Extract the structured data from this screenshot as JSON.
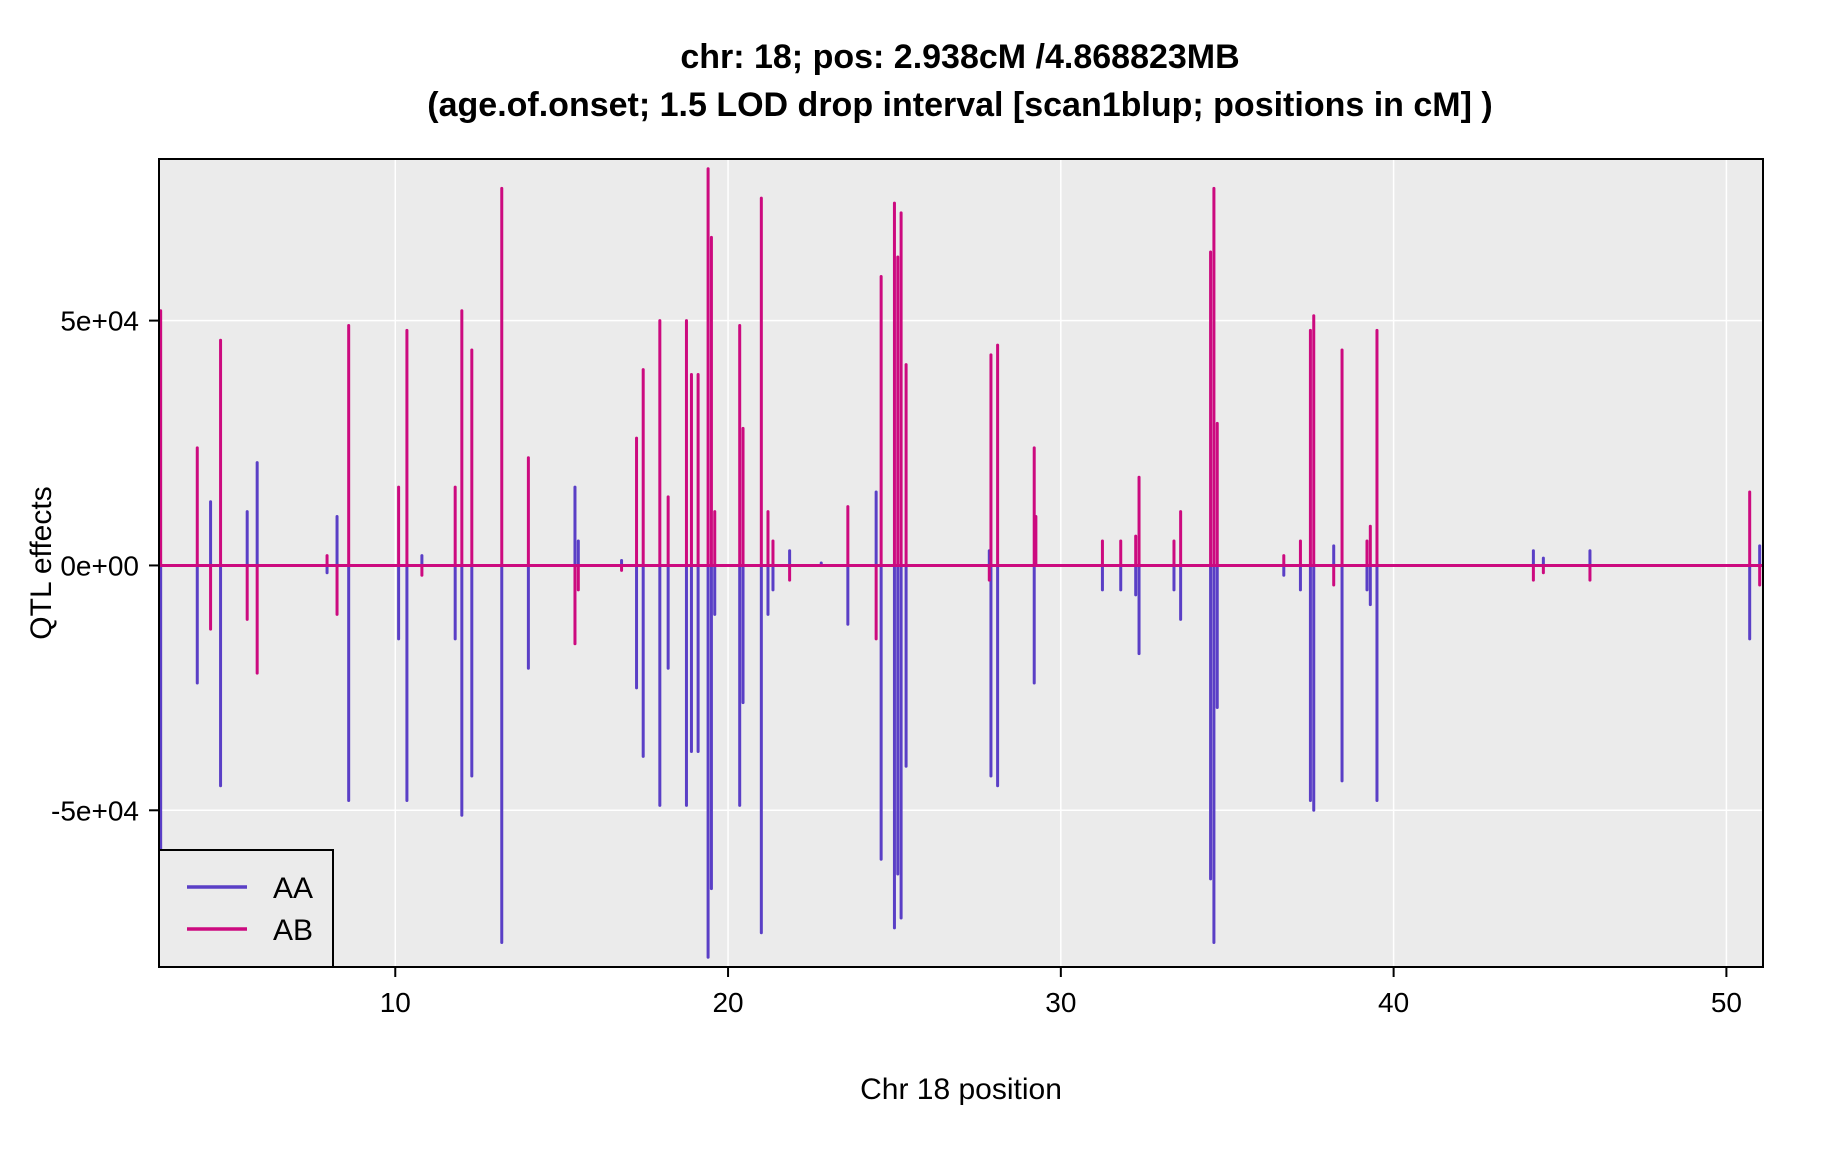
{
  "chart_data": {
    "type": "line",
    "title": "chr: 18; pos: 2.938cM /4.868823MB",
    "subtitle": "(age.of.onset; 1.5 LOD drop interval [scan1blup; positions in cM] )",
    "xlabel": "Chr 18 position",
    "ylabel": "QTL effects",
    "xlim": [
      2.9,
      51.1
    ],
    "ylim": [
      -82000,
      83000
    ],
    "x_ticks": [
      10,
      20,
      30,
      40,
      50
    ],
    "x_tick_labels": [
      "10",
      "20",
      "30",
      "40",
      "50"
    ],
    "y_ticks": [
      -50000,
      0,
      50000
    ],
    "y_tick_labels": [
      "-5e+04",
      "0e+00",
      "5e+04"
    ],
    "grid": true,
    "legend_position": "bottom-left",
    "colors": {
      "panel_bg": "#ebebeb",
      "grid": "#ffffff",
      "AA": "#5a3fc6",
      "AB": "#cc0a7f"
    },
    "series": [
      {
        "name": "AA",
        "color": "#5a3fc6",
        "spikes": [
          [
            2.95,
            -65000
          ],
          [
            4.05,
            -24000
          ],
          [
            4.45,
            13000
          ],
          [
            4.75,
            -45000
          ],
          [
            5.55,
            11000
          ],
          [
            5.85,
            21000
          ],
          [
            7.95,
            -1500
          ],
          [
            8.25,
            10000
          ],
          [
            8.6,
            -48000
          ],
          [
            10.1,
            -15000
          ],
          [
            10.35,
            -48000
          ],
          [
            10.8,
            2000
          ],
          [
            11.8,
            -15000
          ],
          [
            12.0,
            -51000
          ],
          [
            12.3,
            -43000
          ],
          [
            13.2,
            -77000
          ],
          [
            14.0,
            -21000
          ],
          [
            15.4,
            16000
          ],
          [
            15.5,
            5000
          ],
          [
            16.8,
            1000
          ],
          [
            17.25,
            -25000
          ],
          [
            17.45,
            -39000
          ],
          [
            17.95,
            -49000
          ],
          [
            18.2,
            -21000
          ],
          [
            18.75,
            -49000
          ],
          [
            18.9,
            -38000
          ],
          [
            19.1,
            -38000
          ],
          [
            19.4,
            -80000
          ],
          [
            19.5,
            -66000
          ],
          [
            19.6,
            -10000
          ],
          [
            20.35,
            -49000
          ],
          [
            20.45,
            -28000
          ],
          [
            21.0,
            -75000
          ],
          [
            21.2,
            -10000
          ],
          [
            21.35,
            -5000
          ],
          [
            21.85,
            3000
          ],
          [
            22.8,
            500
          ],
          [
            23.6,
            -12000
          ],
          [
            24.45,
            15000
          ],
          [
            24.6,
            -60000
          ],
          [
            25.0,
            -74000
          ],
          [
            25.1,
            -63000
          ],
          [
            25.2,
            -72000
          ],
          [
            25.35,
            -41000
          ],
          [
            27.85,
            3000
          ],
          [
            27.9,
            -43000
          ],
          [
            28.1,
            -45000
          ],
          [
            29.2,
            -24000
          ],
          [
            31.25,
            -5000
          ],
          [
            31.8,
            -5000
          ],
          [
            32.25,
            -6000
          ],
          [
            32.35,
            -18000
          ],
          [
            33.4,
            -5000
          ],
          [
            33.6,
            -11000
          ],
          [
            34.5,
            -64000
          ],
          [
            34.6,
            -77000
          ],
          [
            34.7,
            -29000
          ],
          [
            36.7,
            -2000
          ],
          [
            37.2,
            -5000
          ],
          [
            37.5,
            -48000
          ],
          [
            37.6,
            -50000
          ],
          [
            38.2,
            4000
          ],
          [
            38.45,
            -44000
          ],
          [
            39.2,
            -5000
          ],
          [
            39.3,
            -8000
          ],
          [
            39.5,
            -48000
          ],
          [
            44.2,
            3000
          ],
          [
            44.5,
            1500
          ],
          [
            45.9,
            3000
          ],
          [
            50.7,
            -15000
          ],
          [
            51.0,
            4000
          ]
        ]
      },
      {
        "name": "AB",
        "color": "#cc0a7f",
        "spikes": [
          [
            2.95,
            52000
          ],
          [
            4.05,
            24000
          ],
          [
            4.45,
            -13000
          ],
          [
            4.75,
            46000
          ],
          [
            5.55,
            -11000
          ],
          [
            5.85,
            -22000
          ],
          [
            7.95,
            2000
          ],
          [
            8.25,
            -10000
          ],
          [
            8.6,
            49000
          ],
          [
            10.1,
            16000
          ],
          [
            10.35,
            48000
          ],
          [
            10.8,
            -2000
          ],
          [
            11.8,
            16000
          ],
          [
            12.0,
            52000
          ],
          [
            12.3,
            44000
          ],
          [
            13.2,
            77000
          ],
          [
            14.0,
            22000
          ],
          [
            15.4,
            -16000
          ],
          [
            15.5,
            -5000
          ],
          [
            16.8,
            -1000
          ],
          [
            17.25,
            26000
          ],
          [
            17.45,
            40000
          ],
          [
            17.95,
            50000
          ],
          [
            18.2,
            14000
          ],
          [
            18.75,
            50000
          ],
          [
            18.9,
            39000
          ],
          [
            19.1,
            39000
          ],
          [
            19.4,
            81000
          ],
          [
            19.5,
            67000
          ],
          [
            19.6,
            11000
          ],
          [
            20.35,
            49000
          ],
          [
            20.45,
            28000
          ],
          [
            21.0,
            75000
          ],
          [
            21.2,
            11000
          ],
          [
            21.35,
            5000
          ],
          [
            21.85,
            -3000
          ],
          [
            23.6,
            12000
          ],
          [
            24.45,
            -15000
          ],
          [
            24.6,
            59000
          ],
          [
            25.0,
            74000
          ],
          [
            25.1,
            63000
          ],
          [
            25.2,
            72000
          ],
          [
            25.35,
            41000
          ],
          [
            27.85,
            -3000
          ],
          [
            27.9,
            43000
          ],
          [
            28.1,
            45000
          ],
          [
            29.2,
            24000
          ],
          [
            29.25,
            10000
          ],
          [
            31.25,
            5000
          ],
          [
            31.8,
            5000
          ],
          [
            32.25,
            6000
          ],
          [
            32.35,
            18000
          ],
          [
            33.4,
            5000
          ],
          [
            33.6,
            11000
          ],
          [
            34.5,
            64000
          ],
          [
            34.6,
            77000
          ],
          [
            34.7,
            29000
          ],
          [
            36.7,
            2000
          ],
          [
            37.2,
            5000
          ],
          [
            37.5,
            48000
          ],
          [
            37.6,
            51000
          ],
          [
            38.2,
            -4000
          ],
          [
            38.45,
            44000
          ],
          [
            39.2,
            5000
          ],
          [
            39.3,
            8000
          ],
          [
            39.5,
            48000
          ],
          [
            44.2,
            -3000
          ],
          [
            44.5,
            -1500
          ],
          [
            45.9,
            -3000
          ],
          [
            50.7,
            15000
          ],
          [
            51.0,
            -4000
          ]
        ]
      }
    ]
  }
}
